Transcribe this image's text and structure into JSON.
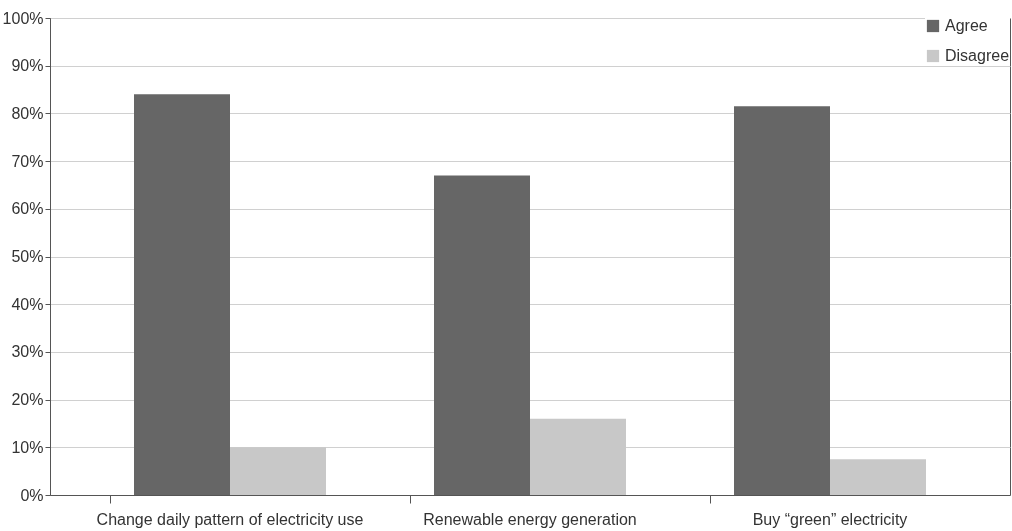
{
  "chart_data": {
    "type": "bar",
    "categories": [
      "Change daily pattern of electricity use",
      "Renewable energy generation",
      "Buy “green” electricity"
    ],
    "series": [
      {
        "name": "Agree",
        "color": "#666666",
        "values": [
          84,
          67,
          81.5
        ]
      },
      {
        "name": "Disagree",
        "color": "#c8c8c8",
        "values": [
          10,
          16,
          7.5
        ]
      }
    ],
    "ylim": [
      0,
      100
    ],
    "yticks": [
      {
        "value": 0,
        "label": "0%"
      },
      {
        "value": 10,
        "label": "10%"
      },
      {
        "value": 20,
        "label": "20%"
      },
      {
        "value": 30,
        "label": "30%"
      },
      {
        "value": 40,
        "label": "40%"
      },
      {
        "value": 50,
        "label": "50%"
      },
      {
        "value": 60,
        "label": "60%"
      },
      {
        "value": 70,
        "label": "70%"
      },
      {
        "value": 80,
        "label": "80%"
      },
      {
        "value": 90,
        "label": "90%"
      },
      {
        "value": 100,
        "label": "100%"
      }
    ],
    "grid": "y",
    "legend": "top right"
  }
}
